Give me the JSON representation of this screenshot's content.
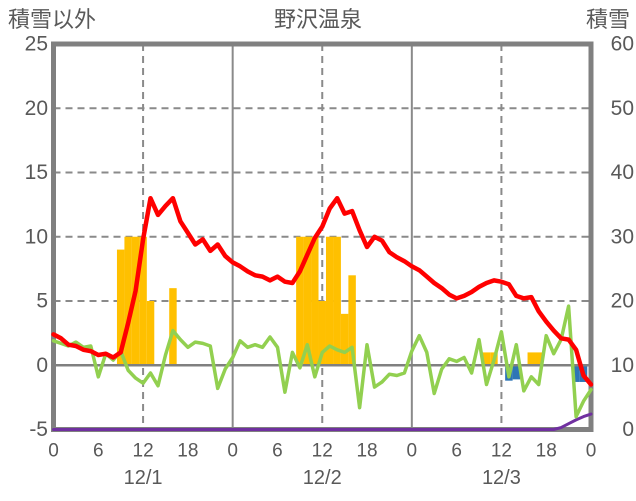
{
  "header": {
    "left_axis_title": "積雪以外",
    "title": "野沢温泉",
    "right_axis_title": "積雪"
  },
  "colors": {
    "frame_gray": "#808080",
    "grid_gray": "#8a8a8a",
    "text_gray": "#595959",
    "red_line": "#ff0000",
    "green_line": "#92d050",
    "purple_line": "#7030a0",
    "orange_bar": "#ffc000",
    "blue_bar": "#2e75b6"
  },
  "chart_data": {
    "type": "line+bar",
    "title": "野沢温泉",
    "x": {
      "unit": "hour",
      "min": 0,
      "max": 72,
      "tick_step": 6,
      "tick_labels": [
        "0",
        "6",
        "12",
        "18",
        "0",
        "6",
        "12",
        "18",
        "0",
        "6",
        "12",
        "18",
        "0"
      ],
      "date_labels": [
        {
          "label": "12/1",
          "hour": 12
        },
        {
          "label": "12/2",
          "hour": 36
        },
        {
          "label": "12/3",
          "hour": 60
        }
      ],
      "grid_dashed_hours": [
        12,
        36,
        60
      ],
      "grid_solid_hours": [
        24,
        48
      ]
    },
    "left_axis": {
      "title": "積雪以外",
      "min": -5,
      "max": 25,
      "ticks": [
        25,
        20,
        15,
        10,
        5,
        0,
        -5
      ],
      "grid_dashed_values": [
        20,
        15,
        10,
        5
      ],
      "zero_line": 0
    },
    "right_axis": {
      "title": "積雪",
      "min": 0,
      "max": 60,
      "ticks": [
        60,
        50,
        40,
        30,
        20,
        10,
        0
      ]
    },
    "series": [
      {
        "id": "red_line",
        "type": "line",
        "axis": "left",
        "color": "#ff0000",
        "values": [
          2.4,
          2.1,
          1.6,
          1.5,
          1.2,
          1.1,
          0.8,
          0.9,
          0.6,
          1.0,
          3.3,
          5.8,
          9.8,
          13.0,
          11.7,
          12.4,
          13.0,
          11.2,
          10.3,
          9.4,
          9.8,
          8.9,
          9.4,
          8.5,
          8.0,
          7.7,
          7.3,
          7.0,
          6.9,
          6.6,
          6.9,
          6.5,
          6.4,
          7.3,
          8.6,
          9.9,
          10.8,
          12.2,
          13.0,
          11.8,
          12.0,
          10.5,
          9.2,
          10.0,
          9.7,
          8.8,
          8.4,
          8.1,
          7.7,
          7.4,
          6.9,
          6.4,
          6.0,
          5.5,
          5.2,
          5.4,
          5.7,
          6.1,
          6.4,
          6.6,
          6.5,
          6.3,
          5.4,
          5.2,
          5.3,
          4.2,
          3.4,
          2.7,
          2.1,
          2.0,
          1.2,
          -0.8,
          -1.5
        ]
      },
      {
        "id": "green_line",
        "type": "line",
        "axis": "left",
        "color": "#92d050",
        "values": [
          1.9,
          1.7,
          1.5,
          1.8,
          1.4,
          1.5,
          -0.9,
          0.9,
          0.4,
          1.1,
          -0.4,
          -1.0,
          -1.4,
          -0.6,
          -1.6,
          0.8,
          2.7,
          2.0,
          1.4,
          1.8,
          1.7,
          1.5,
          -1.8,
          -0.3,
          0.6,
          1.9,
          1.4,
          1.6,
          1.4,
          2.2,
          1.4,
          -2.1,
          1.0,
          -0.2,
          1.6,
          -0.9,
          1.0,
          1.5,
          1.2,
          1.0,
          1.4,
          -3.3,
          1.6,
          -1.7,
          -1.3,
          -0.7,
          -0.8,
          -0.6,
          1.1,
          2.3,
          1.0,
          -2.2,
          -0.3,
          0.5,
          0.3,
          0.6,
          -0.6,
          2.0,
          -1.5,
          0.4,
          2.6,
          -0.9,
          1.6,
          -2.0,
          -0.9,
          -1.5,
          2.3,
          0.9,
          2.0,
          4.6,
          -4.0,
          -2.8,
          -1.9
        ]
      },
      {
        "id": "purple_line",
        "type": "line",
        "axis": "right",
        "color": "#7030a0",
        "values": [
          0,
          0,
          0,
          0,
          0,
          0,
          0,
          0,
          0,
          0,
          0,
          0,
          0,
          0,
          0,
          0,
          0,
          0,
          0,
          0,
          0,
          0,
          0,
          0,
          0,
          0,
          0,
          0,
          0,
          0,
          0,
          0,
          0,
          0,
          0,
          0,
          0,
          0,
          0,
          0,
          0,
          0,
          0,
          0,
          0,
          0,
          0,
          0,
          0,
          0,
          0,
          0,
          0,
          0,
          0,
          0,
          0,
          0,
          0,
          0,
          0,
          0,
          0,
          0,
          0,
          0,
          0,
          0,
          0.3,
          0.9,
          1.5,
          2.0,
          2.4
        ]
      },
      {
        "id": "orange_bars",
        "type": "bar",
        "axis": "left",
        "color": "#ffc000",
        "bars": [
          {
            "hour": 9,
            "value": 9
          },
          {
            "hour": 10,
            "value": 10
          },
          {
            "hour": 11,
            "value": 10
          },
          {
            "hour": 12,
            "value": 10
          },
          {
            "hour": 13,
            "value": 5
          },
          {
            "hour": 16,
            "value": 6
          },
          {
            "hour": 33,
            "value": 10
          },
          {
            "hour": 34,
            "value": 10
          },
          {
            "hour": 35,
            "value": 10
          },
          {
            "hour": 36,
            "value": 5
          },
          {
            "hour": 37,
            "value": 10
          },
          {
            "hour": 38,
            "value": 10
          },
          {
            "hour": 39,
            "value": 4
          },
          {
            "hour": 40,
            "value": 7
          },
          {
            "hour": 58,
            "value": 1
          },
          {
            "hour": 59,
            "value": 1
          },
          {
            "hour": 64,
            "value": 1
          },
          {
            "hour": 65,
            "value": 1
          }
        ]
      },
      {
        "id": "blue_bars",
        "type": "bar",
        "axis": "left",
        "color": "#2e75b6",
        "bars": [
          {
            "hour": 61,
            "value": -1.2
          },
          {
            "hour": 62,
            "value": -1.1
          },
          {
            "hour": 70,
            "value": -1.3
          },
          {
            "hour": 71,
            "value": -1.3
          }
        ]
      }
    ]
  }
}
